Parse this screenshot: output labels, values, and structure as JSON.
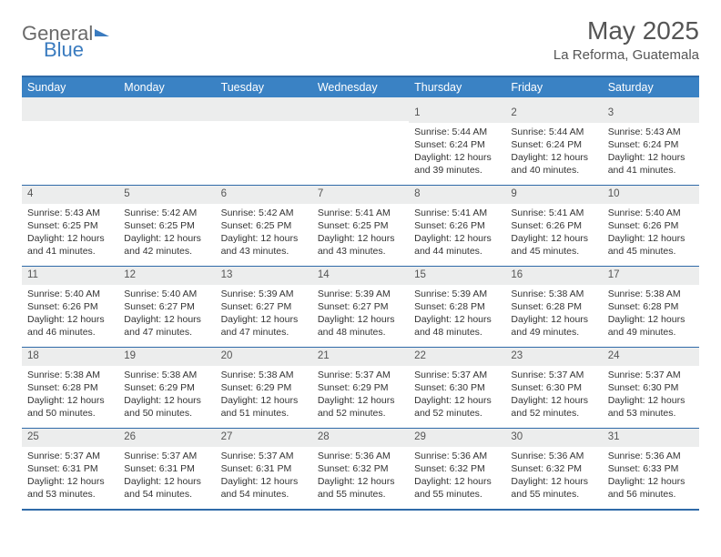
{
  "brand": {
    "part1": "General",
    "part2": "Blue"
  },
  "title": "May 2025",
  "location": "La Reforma, Guatemala",
  "colors": {
    "header_bg": "#3a82c4",
    "rule": "#2f6aa8",
    "daynum_bg": "#eceded",
    "text": "#333333"
  },
  "dow": [
    "Sunday",
    "Monday",
    "Tuesday",
    "Wednesday",
    "Thursday",
    "Friday",
    "Saturday"
  ],
  "weeks": [
    [
      {
        "n": "",
        "sr": "",
        "ss": "",
        "dl1": "",
        "dl2": ""
      },
      {
        "n": "",
        "sr": "",
        "ss": "",
        "dl1": "",
        "dl2": ""
      },
      {
        "n": "",
        "sr": "",
        "ss": "",
        "dl1": "",
        "dl2": ""
      },
      {
        "n": "",
        "sr": "",
        "ss": "",
        "dl1": "",
        "dl2": ""
      },
      {
        "n": "1",
        "sr": "Sunrise: 5:44 AM",
        "ss": "Sunset: 6:24 PM",
        "dl1": "Daylight: 12 hours",
        "dl2": "and 39 minutes."
      },
      {
        "n": "2",
        "sr": "Sunrise: 5:44 AM",
        "ss": "Sunset: 6:24 PM",
        "dl1": "Daylight: 12 hours",
        "dl2": "and 40 minutes."
      },
      {
        "n": "3",
        "sr": "Sunrise: 5:43 AM",
        "ss": "Sunset: 6:24 PM",
        "dl1": "Daylight: 12 hours",
        "dl2": "and 41 minutes."
      }
    ],
    [
      {
        "n": "4",
        "sr": "Sunrise: 5:43 AM",
        "ss": "Sunset: 6:25 PM",
        "dl1": "Daylight: 12 hours",
        "dl2": "and 41 minutes."
      },
      {
        "n": "5",
        "sr": "Sunrise: 5:42 AM",
        "ss": "Sunset: 6:25 PM",
        "dl1": "Daylight: 12 hours",
        "dl2": "and 42 minutes."
      },
      {
        "n": "6",
        "sr": "Sunrise: 5:42 AM",
        "ss": "Sunset: 6:25 PM",
        "dl1": "Daylight: 12 hours",
        "dl2": "and 43 minutes."
      },
      {
        "n": "7",
        "sr": "Sunrise: 5:41 AM",
        "ss": "Sunset: 6:25 PM",
        "dl1": "Daylight: 12 hours",
        "dl2": "and 43 minutes."
      },
      {
        "n": "8",
        "sr": "Sunrise: 5:41 AM",
        "ss": "Sunset: 6:26 PM",
        "dl1": "Daylight: 12 hours",
        "dl2": "and 44 minutes."
      },
      {
        "n": "9",
        "sr": "Sunrise: 5:41 AM",
        "ss": "Sunset: 6:26 PM",
        "dl1": "Daylight: 12 hours",
        "dl2": "and 45 minutes."
      },
      {
        "n": "10",
        "sr": "Sunrise: 5:40 AM",
        "ss": "Sunset: 6:26 PM",
        "dl1": "Daylight: 12 hours",
        "dl2": "and 45 minutes."
      }
    ],
    [
      {
        "n": "11",
        "sr": "Sunrise: 5:40 AM",
        "ss": "Sunset: 6:26 PM",
        "dl1": "Daylight: 12 hours",
        "dl2": "and 46 minutes."
      },
      {
        "n": "12",
        "sr": "Sunrise: 5:40 AM",
        "ss": "Sunset: 6:27 PM",
        "dl1": "Daylight: 12 hours",
        "dl2": "and 47 minutes."
      },
      {
        "n": "13",
        "sr": "Sunrise: 5:39 AM",
        "ss": "Sunset: 6:27 PM",
        "dl1": "Daylight: 12 hours",
        "dl2": "and 47 minutes."
      },
      {
        "n": "14",
        "sr": "Sunrise: 5:39 AM",
        "ss": "Sunset: 6:27 PM",
        "dl1": "Daylight: 12 hours",
        "dl2": "and 48 minutes."
      },
      {
        "n": "15",
        "sr": "Sunrise: 5:39 AM",
        "ss": "Sunset: 6:28 PM",
        "dl1": "Daylight: 12 hours",
        "dl2": "and 48 minutes."
      },
      {
        "n": "16",
        "sr": "Sunrise: 5:38 AM",
        "ss": "Sunset: 6:28 PM",
        "dl1": "Daylight: 12 hours",
        "dl2": "and 49 minutes."
      },
      {
        "n": "17",
        "sr": "Sunrise: 5:38 AM",
        "ss": "Sunset: 6:28 PM",
        "dl1": "Daylight: 12 hours",
        "dl2": "and 49 minutes."
      }
    ],
    [
      {
        "n": "18",
        "sr": "Sunrise: 5:38 AM",
        "ss": "Sunset: 6:28 PM",
        "dl1": "Daylight: 12 hours",
        "dl2": "and 50 minutes."
      },
      {
        "n": "19",
        "sr": "Sunrise: 5:38 AM",
        "ss": "Sunset: 6:29 PM",
        "dl1": "Daylight: 12 hours",
        "dl2": "and 50 minutes."
      },
      {
        "n": "20",
        "sr": "Sunrise: 5:38 AM",
        "ss": "Sunset: 6:29 PM",
        "dl1": "Daylight: 12 hours",
        "dl2": "and 51 minutes."
      },
      {
        "n": "21",
        "sr": "Sunrise: 5:37 AM",
        "ss": "Sunset: 6:29 PM",
        "dl1": "Daylight: 12 hours",
        "dl2": "and 52 minutes."
      },
      {
        "n": "22",
        "sr": "Sunrise: 5:37 AM",
        "ss": "Sunset: 6:30 PM",
        "dl1": "Daylight: 12 hours",
        "dl2": "and 52 minutes."
      },
      {
        "n": "23",
        "sr": "Sunrise: 5:37 AM",
        "ss": "Sunset: 6:30 PM",
        "dl1": "Daylight: 12 hours",
        "dl2": "and 52 minutes."
      },
      {
        "n": "24",
        "sr": "Sunrise: 5:37 AM",
        "ss": "Sunset: 6:30 PM",
        "dl1": "Daylight: 12 hours",
        "dl2": "and 53 minutes."
      }
    ],
    [
      {
        "n": "25",
        "sr": "Sunrise: 5:37 AM",
        "ss": "Sunset: 6:31 PM",
        "dl1": "Daylight: 12 hours",
        "dl2": "and 53 minutes."
      },
      {
        "n": "26",
        "sr": "Sunrise: 5:37 AM",
        "ss": "Sunset: 6:31 PM",
        "dl1": "Daylight: 12 hours",
        "dl2": "and 54 minutes."
      },
      {
        "n": "27",
        "sr": "Sunrise: 5:37 AM",
        "ss": "Sunset: 6:31 PM",
        "dl1": "Daylight: 12 hours",
        "dl2": "and 54 minutes."
      },
      {
        "n": "28",
        "sr": "Sunrise: 5:36 AM",
        "ss": "Sunset: 6:32 PM",
        "dl1": "Daylight: 12 hours",
        "dl2": "and 55 minutes."
      },
      {
        "n": "29",
        "sr": "Sunrise: 5:36 AM",
        "ss": "Sunset: 6:32 PM",
        "dl1": "Daylight: 12 hours",
        "dl2": "and 55 minutes."
      },
      {
        "n": "30",
        "sr": "Sunrise: 5:36 AM",
        "ss": "Sunset: 6:32 PM",
        "dl1": "Daylight: 12 hours",
        "dl2": "and 55 minutes."
      },
      {
        "n": "31",
        "sr": "Sunrise: 5:36 AM",
        "ss": "Sunset: 6:33 PM",
        "dl1": "Daylight: 12 hours",
        "dl2": "and 56 minutes."
      }
    ]
  ]
}
